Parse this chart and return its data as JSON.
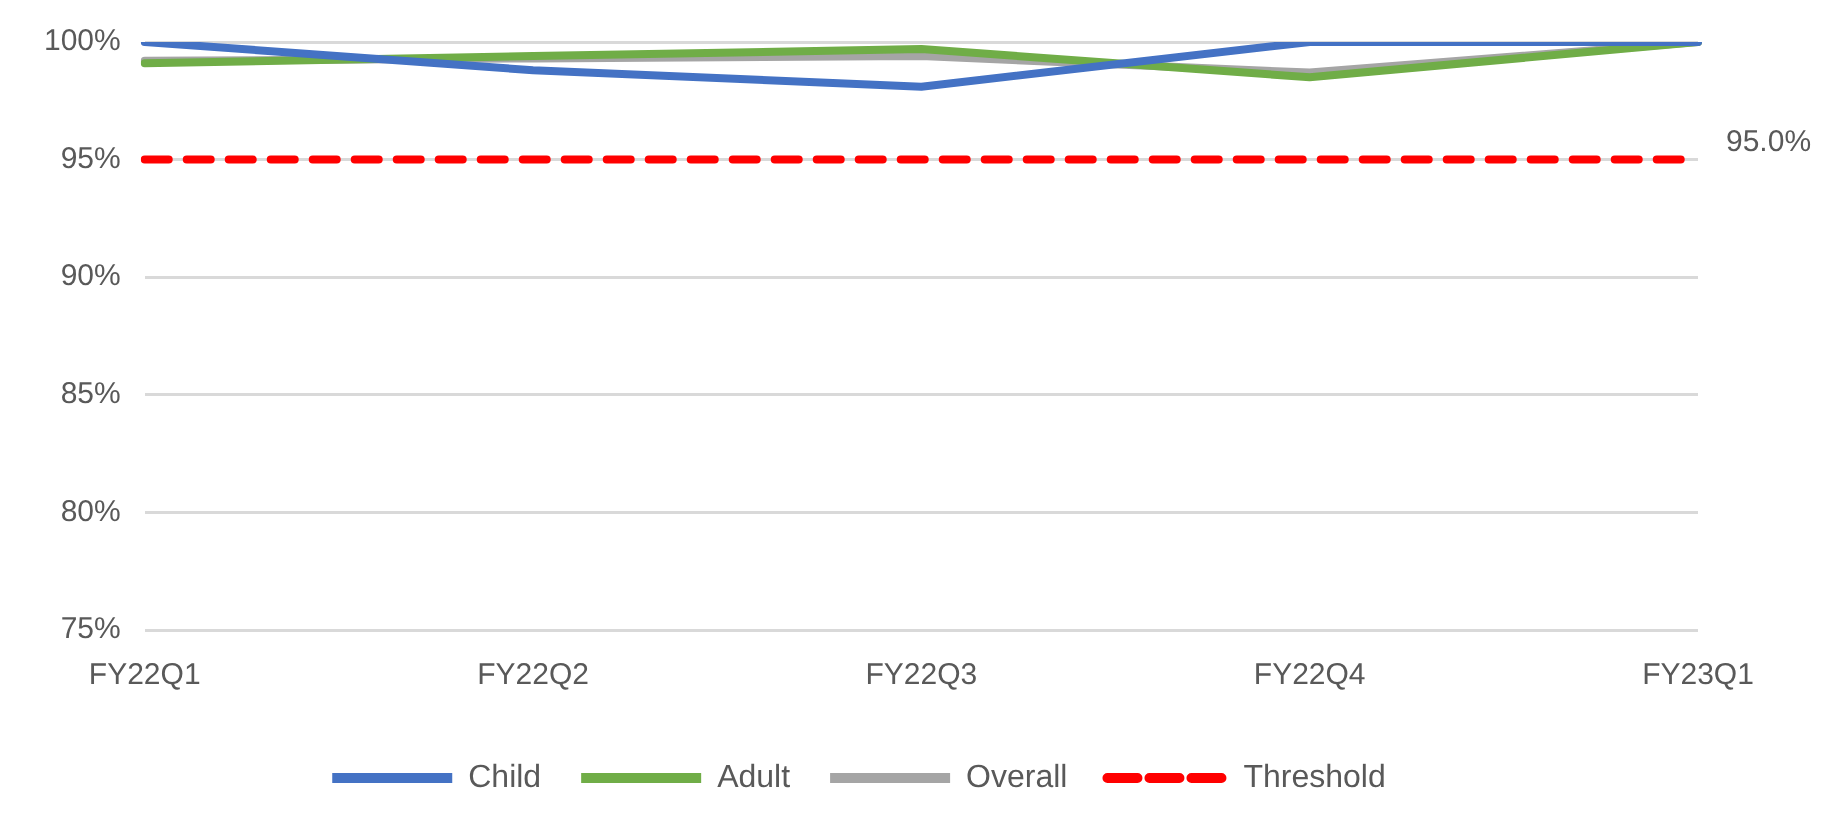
{
  "chart_data": {
    "type": "line",
    "categories": [
      "FY22Q1",
      "FY22Q2",
      "FY22Q3",
      "FY22Q4",
      "FY23Q1"
    ],
    "series": [
      {
        "name": "Child",
        "color": "#4472c4",
        "values": [
          100,
          98.8,
          98.1,
          100,
          100
        ]
      },
      {
        "name": "Adult",
        "color": "#70ad47",
        "values": [
          99.1,
          99.4,
          99.7,
          98.5,
          100
        ]
      },
      {
        "name": "Overall",
        "color": "#a5a5a5",
        "values": [
          99.2,
          99.3,
          99.4,
          98.7,
          100
        ]
      },
      {
        "name": "Threshold",
        "color": "#ff0000",
        "line_style": "dashed",
        "values": [
          95,
          95,
          95,
          95,
          95
        ],
        "value_labels": [
          null,
          null,
          null,
          null,
          "95.0%"
        ]
      }
    ],
    "ylim": [
      75,
      100
    ],
    "yticks": [
      {
        "value": 75,
        "label": "75%"
      },
      {
        "value": 80,
        "label": "80%"
      },
      {
        "value": 85,
        "label": "85%"
      },
      {
        "value": 90,
        "label": "90%"
      },
      {
        "value": 95,
        "label": "95%"
      },
      {
        "value": 100,
        "label": "100%"
      }
    ],
    "grid": "y",
    "legend": "bottom",
    "marker": "none"
  }
}
